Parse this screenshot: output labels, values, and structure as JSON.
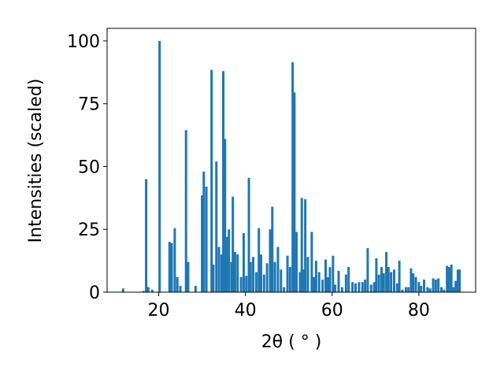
{
  "chart_data": {
    "type": "bar",
    "x_label": "2θ ( ° )",
    "y_label": "Intensities (scaled)",
    "color": "#1f77b4",
    "x": [
      11.8,
      16.5,
      17.1,
      17.6,
      18.5,
      20.2,
      22.5,
      23.0,
      23.7,
      24.3,
      25.0,
      26.3,
      26.8,
      28.5,
      30.0,
      30.4,
      31.0,
      32.2,
      32.6,
      33.3,
      33.9,
      34.5,
      34.9,
      35.3,
      35.7,
      36.2,
      36.8,
      37.1,
      37.6,
      38.2,
      39.0,
      39.6,
      40.2,
      40.8,
      41.2,
      41.8,
      42.5,
      43.1,
      43.6,
      44.3,
      45.0,
      45.7,
      46.2,
      46.8,
      47.5,
      48.2,
      48.9,
      49.7,
      50.3,
      50.9,
      51.3,
      51.8,
      52.6,
      53.0,
      53.5,
      53.8,
      54.4,
      55.3,
      55.8,
      56.3,
      57.0,
      57.8,
      58.5,
      59.0,
      59.5,
      60.2,
      60.7,
      61.5,
      62.3,
      63.2,
      63.8,
      64.7,
      65.4,
      66.2,
      67.0,
      67.6,
      68.2,
      69.0,
      69.7,
      70.2,
      70.8,
      71.4,
      71.9,
      72.5,
      73.0,
      73.6,
      74.3,
      75.0,
      75.5,
      76.2,
      77.0,
      77.6,
      78.2,
      78.7,
      79.3,
      80.0,
      80.5,
      81.2,
      82.0,
      82.6,
      83.3,
      83.9,
      84.5,
      85.2,
      85.8,
      86.5,
      87.0,
      87.5,
      88.0,
      88.5,
      89.0,
      89.4
    ],
    "values": [
      1.5,
      0.5,
      45,
      2,
      1,
      100,
      20,
      19.5,
      25.5,
      6,
      2.5,
      64.5,
      12,
      2.5,
      38.5,
      48,
      42,
      88.5,
      11,
      52,
      18,
      15,
      88,
      61,
      22,
      25,
      12,
      38,
      16,
      15,
      6,
      23.5,
      6.5,
      45.5,
      12,
      14,
      8,
      25.5,
      15,
      7,
      11.5,
      25,
      34,
      12,
      18,
      9,
      2,
      14.5,
      10,
      91.5,
      79.5,
      24,
      8,
      37.5,
      9,
      37,
      14,
      24,
      6,
      12.5,
      8,
      5,
      13,
      6,
      10,
      14.5,
      3,
      8.5,
      2,
      7,
      10,
      4,
      3.5,
      4,
      4,
      5,
      17.5,
      3,
      4,
      13.5,
      7,
      10,
      7.5,
      16,
      10,
      8,
      9,
      3.5,
      12.5,
      1,
      2,
      2,
      9.5,
      7.5,
      6,
      4,
      2.5,
      5,
      2,
      1.5,
      5.5,
      5,
      5.5,
      2,
      1,
      10.5,
      10,
      11,
      2,
      4.5,
      9,
      9
    ],
    "xlim": [
      8.1,
      93.1
    ],
    "ylim": [
      0,
      105
    ],
    "xticks": [
      20,
      40,
      60,
      80
    ],
    "yticks": [
      0,
      25,
      50,
      75,
      100
    ]
  }
}
